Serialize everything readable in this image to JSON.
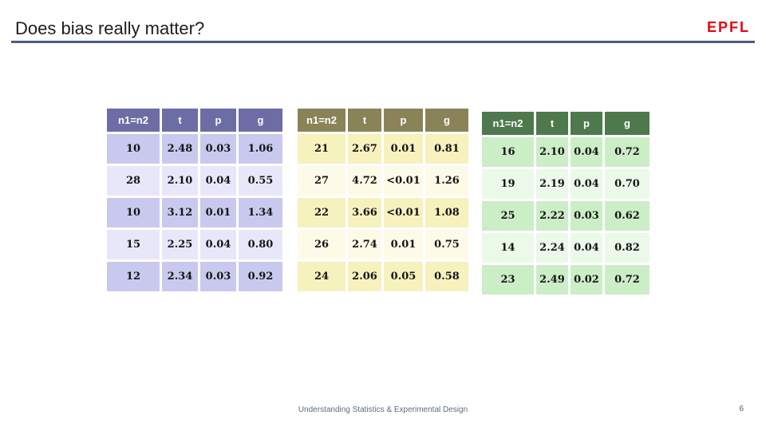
{
  "slide": {
    "title": "Does bias really matter?",
    "logo_text": "EPFL",
    "footer": "Understanding Statistics & Experimental Design",
    "page_number": "6",
    "accent_colors": {
      "rule": "#4d5c84",
      "logo_red": "#e30613",
      "footer_text": "#5d6c80"
    }
  },
  "tables": [
    {
      "name": "purple-results-table",
      "theme": {
        "header_bg": "#6d6da6",
        "header_text": "#ffffff",
        "row_odd_bg": "#c9c9ef",
        "row_even_bg": "#e7e7f9"
      },
      "columns": [
        "n1=n2",
        "t",
        "p",
        "g"
      ],
      "rows": [
        [
          "10",
          "2.48",
          "0.03",
          "1.06"
        ],
        [
          "28",
          "2.10",
          "0.04",
          "0.55"
        ],
        [
          "10",
          "3.12",
          "0.01",
          "1.34"
        ],
        [
          "15",
          "2.25",
          "0.04",
          "0.80"
        ],
        [
          "12",
          "2.34",
          "0.03",
          "0.92"
        ]
      ]
    },
    {
      "name": "yellow-results-table",
      "theme": {
        "header_bg": "#8a8358",
        "header_text": "#ffffff",
        "row_odd_bg": "#f7f1bd",
        "row_even_bg": "#fdfbe7"
      },
      "columns": [
        "n1=n2",
        "t",
        "p",
        "g"
      ],
      "rows": [
        [
          "21",
          "2.67",
          "0.01",
          "0.81"
        ],
        [
          "27",
          "4.72",
          "<0.01",
          "1.26"
        ],
        [
          "22",
          "3.66",
          "<0.01",
          "1.08"
        ],
        [
          "26",
          "2.74",
          "0.01",
          "0.75"
        ],
        [
          "24",
          "2.06",
          "0.05",
          "0.58"
        ]
      ]
    },
    {
      "name": "green-results-table",
      "theme": {
        "header_bg": "#4d794d",
        "header_text": "#ffffff",
        "row_odd_bg": "#cceec6",
        "row_even_bg": "#ebf9e8"
      },
      "columns": [
        "n1=n2",
        "t",
        "p",
        "g"
      ],
      "rows": [
        [
          "16",
          "2.10",
          "0.04",
          "0.72"
        ],
        [
          "19",
          "2.19",
          "0.04",
          "0.70"
        ],
        [
          "25",
          "2.22",
          "0.03",
          "0.62"
        ],
        [
          "14",
          "2.24",
          "0.04",
          "0.82"
        ],
        [
          "23",
          "2.49",
          "0.02",
          "0.72"
        ]
      ]
    }
  ]
}
